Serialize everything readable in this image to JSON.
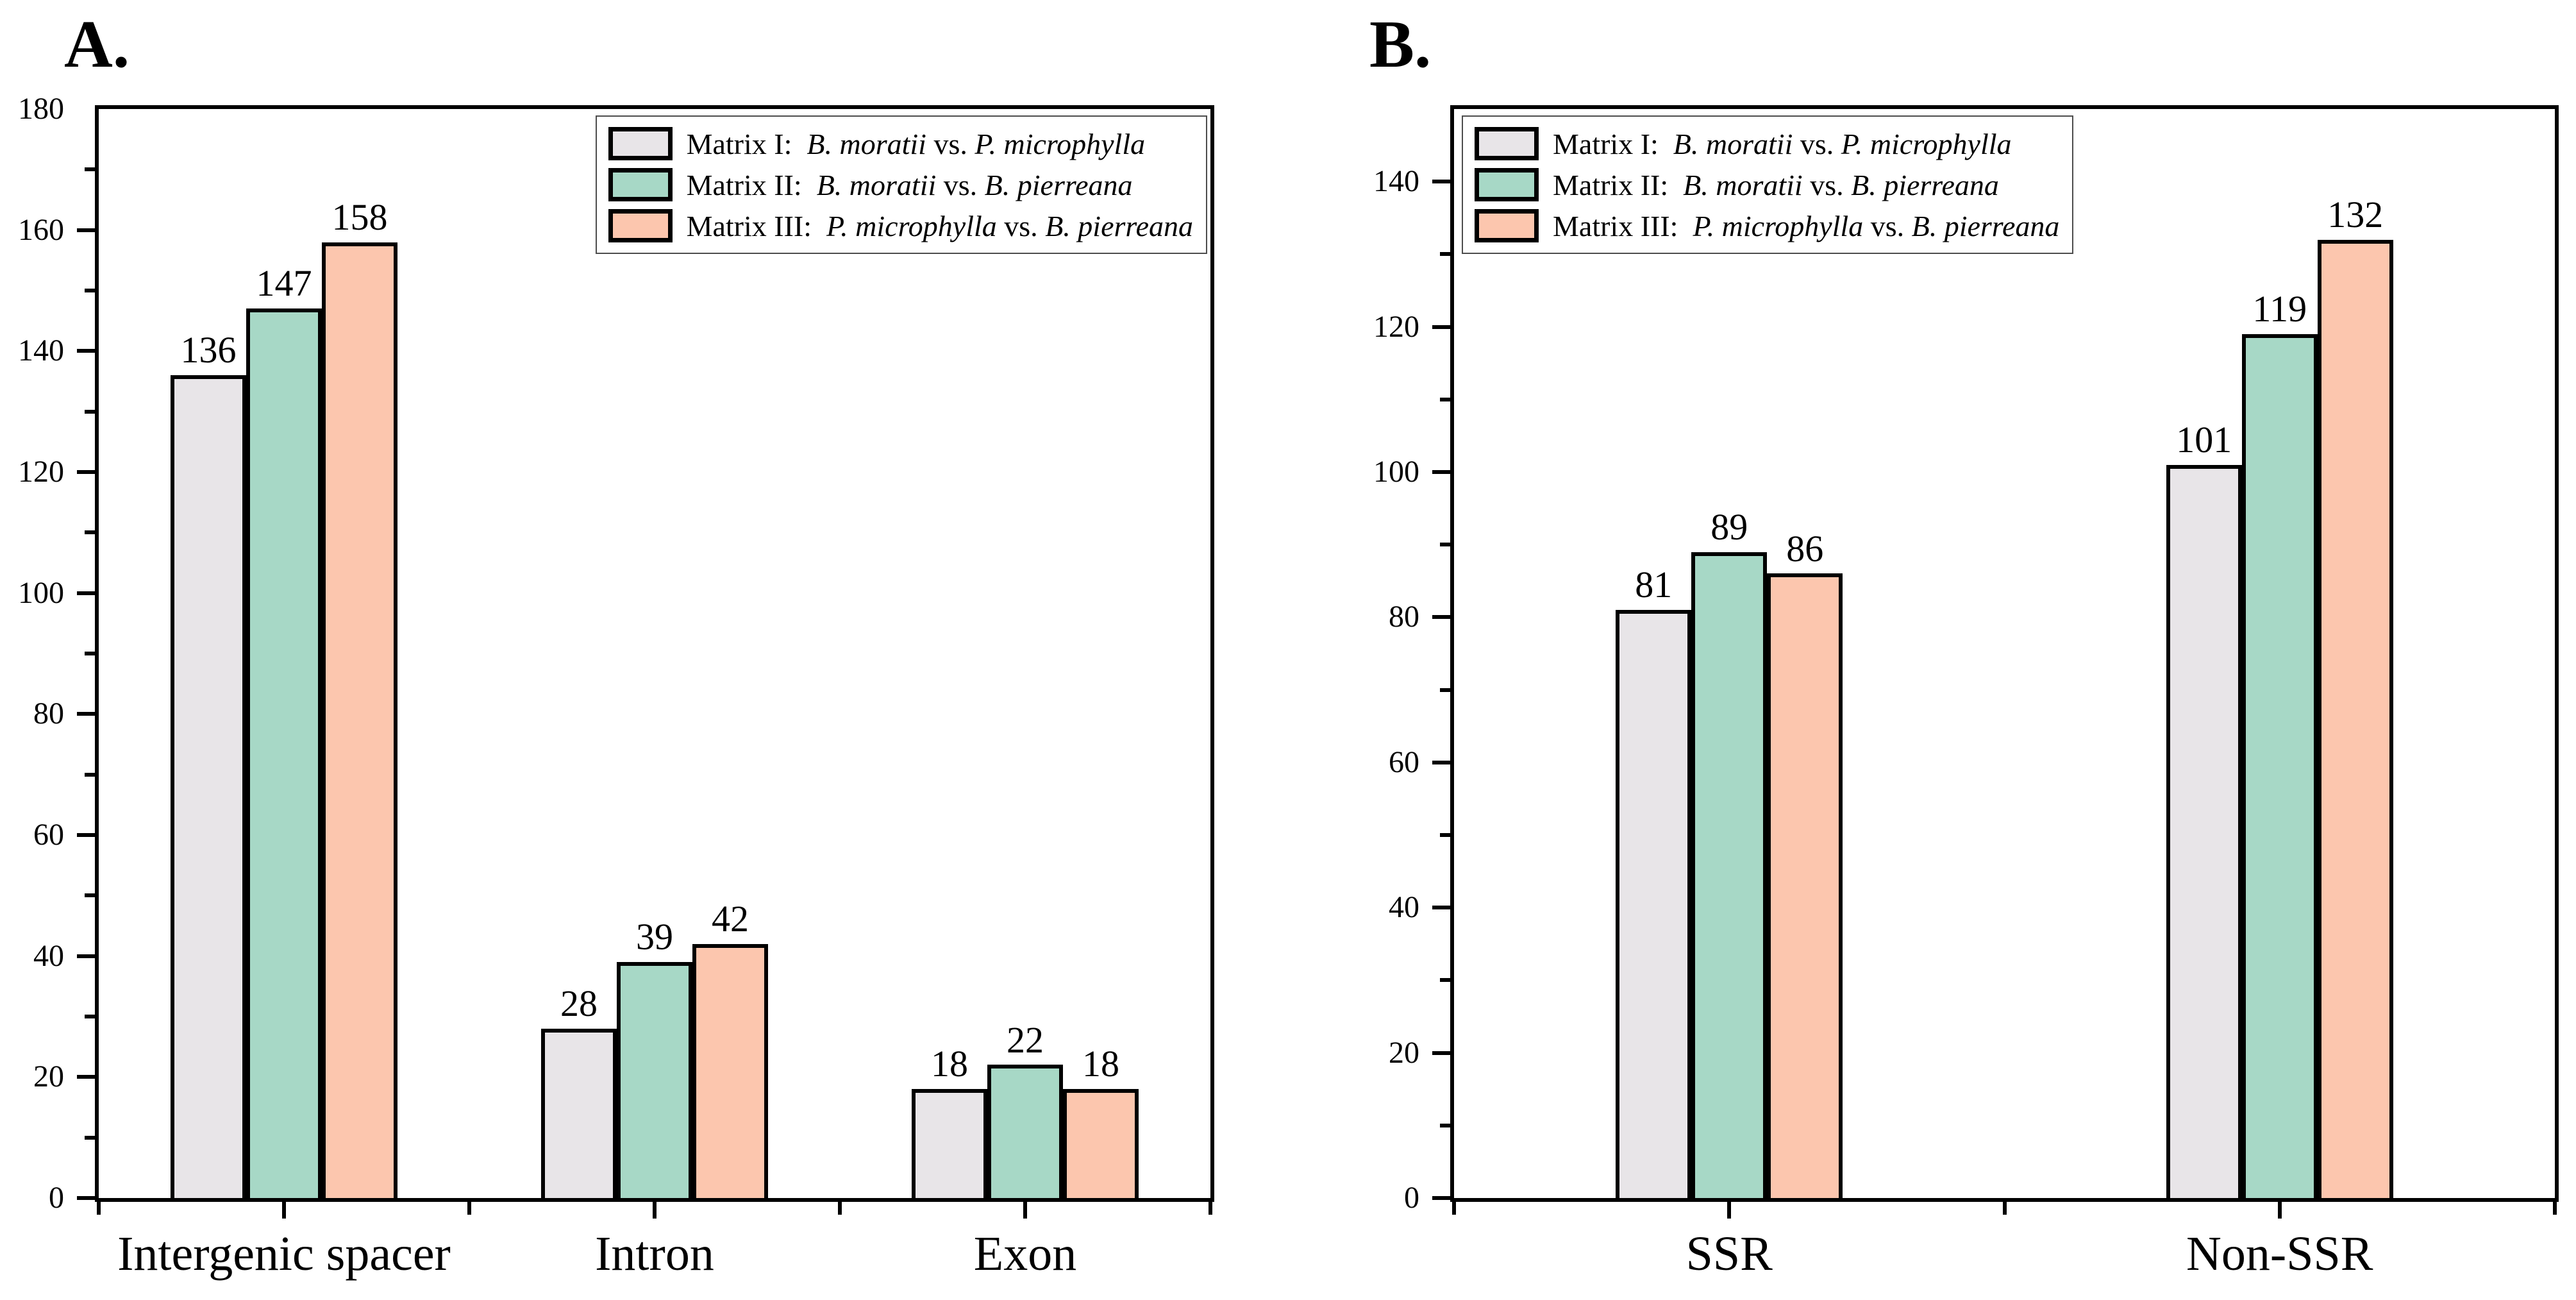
{
  "figure": {
    "background": "#ffffff",
    "text_color": "#000000",
    "axis_color": "#000000"
  },
  "chart_data": [
    {
      "type": "bar",
      "panel_label": "A.",
      "title": "",
      "xlabel": "",
      "ylabel": "",
      "grid": false,
      "categories": [
        "Intergenic spacer",
        "Intron",
        "Exon"
      ],
      "series": [
        {
          "name": "Matrix I",
          "legend_prefix": "Matrix I:",
          "italic_a": "B. moratii",
          "sep": "vs.",
          "italic_b": "P. microphylla",
          "color": "#e8e5e8",
          "values": [
            136,
            28,
            18
          ]
        },
        {
          "name": "Matrix II",
          "legend_prefix": "Matrix II:",
          "italic_a": "B. moratii",
          "sep": "vs.",
          "italic_b": "B. pierreana",
          "color": "#a7d8c6",
          "values": [
            147,
            39,
            22
          ]
        },
        {
          "name": "Matrix III",
          "legend_prefix": "Matrix III:",
          "italic_a": "P. microphylla",
          "sep": "vs.",
          "italic_b": "B. pierreana",
          "color": "#fcc6ae",
          "values": [
            158,
            42,
            18
          ]
        }
      ],
      "ylim": [
        0,
        180
      ],
      "ytick_step": 20,
      "minor_tick_step": 10,
      "ytick_labeled_max": 180,
      "bar_value_labels": true,
      "legend_position": "top-right"
    },
    {
      "type": "bar",
      "panel_label": "B.",
      "title": "",
      "xlabel": "",
      "ylabel": "",
      "grid": false,
      "categories": [
        "SSR",
        "Non-SSR"
      ],
      "series": [
        {
          "name": "Matrix I",
          "legend_prefix": "Matrix I:",
          "italic_a": "B. moratii",
          "sep": "vs.",
          "italic_b": "P. microphylla",
          "color": "#e8e5e8",
          "values": [
            81,
            101
          ]
        },
        {
          "name": "Matrix II",
          "legend_prefix": "Matrix II:",
          "italic_a": "B. moratii",
          "sep": "vs.",
          "italic_b": "B. pierreana",
          "color": "#a7d8c6",
          "values": [
            89,
            119
          ]
        },
        {
          "name": "Matrix III",
          "legend_prefix": "Matrix III:",
          "italic_a": "P. microphylla",
          "sep": "vs.",
          "italic_b": "B. pierreana",
          "color": "#fcc6ae",
          "values": [
            86,
            132
          ]
        }
      ],
      "ylim": [
        0,
        150
      ],
      "ytick_step": 20,
      "minor_tick_step": 10,
      "ytick_labeled_max": 140,
      "bar_value_labels": true,
      "legend_position": "top-left"
    }
  ]
}
